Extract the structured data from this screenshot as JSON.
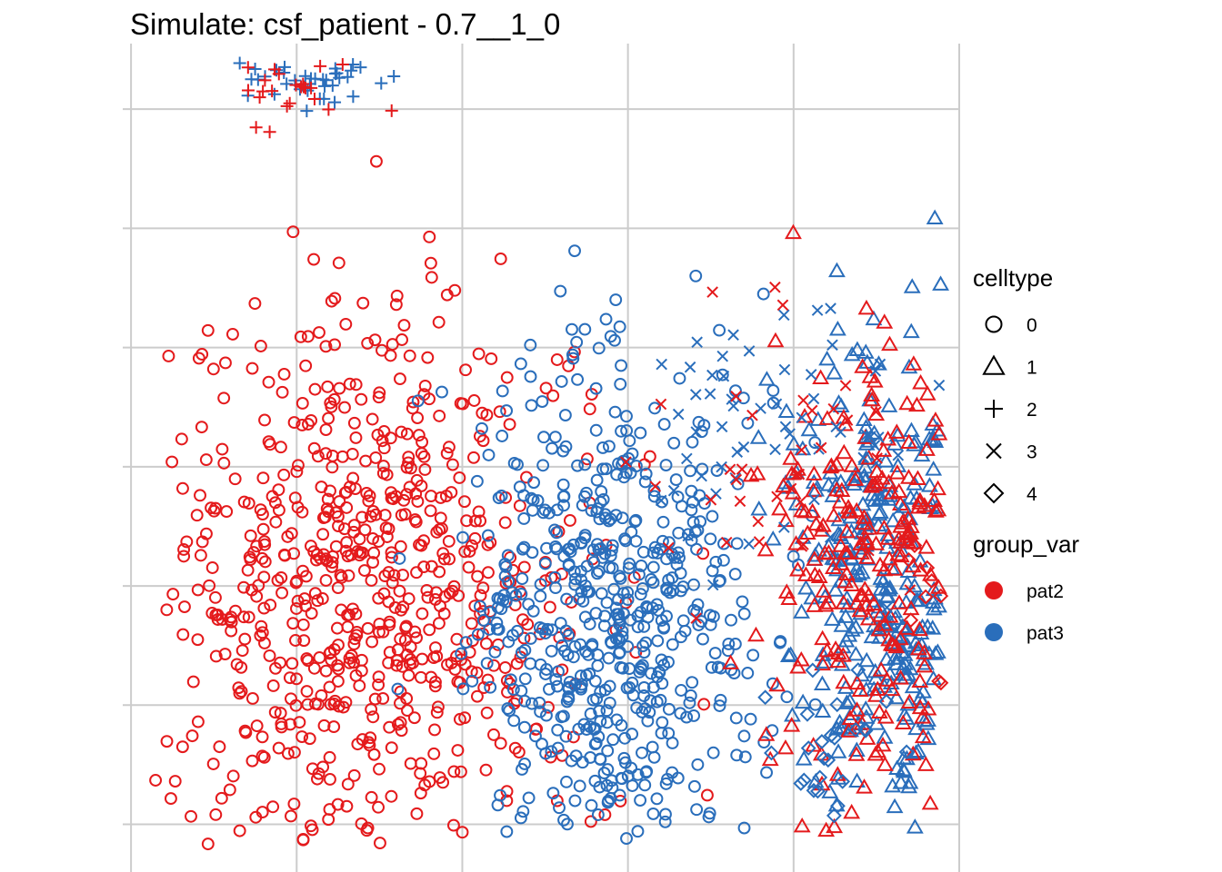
{
  "chart_data": {
    "type": "scatter",
    "title": "Simulate: csf_patient - 0.7__1_0",
    "xlabel": "",
    "ylabel": "",
    "grid": true,
    "axis_ticks_labeled": false,
    "legend_position": "right",
    "colors": {
      "pat2": "#E41A1C",
      "pat3": "#2A6EBB",
      "grid": "#cccccc"
    },
    "legends": [
      {
        "title": "celltype",
        "entries": [
          {
            "label": "0",
            "shape": "circle"
          },
          {
            "label": "1",
            "shape": "triangle"
          },
          {
            "label": "2",
            "shape": "plus"
          },
          {
            "label": "3",
            "shape": "cross"
          },
          {
            "label": "4",
            "shape": "diamond"
          }
        ]
      },
      {
        "title": "group_var",
        "entries": [
          {
            "label": "pat2",
            "color": "#E41A1C"
          },
          {
            "label": "pat3",
            "color": "#2A6EBB"
          }
        ]
      }
    ],
    "clusters": [
      {
        "celltype": "2",
        "group_var": "pat3",
        "center": [
          -1.95,
          4.25
        ],
        "spread": [
          0.2,
          0.14
        ],
        "n": 42
      },
      {
        "celltype": "2",
        "group_var": "pat2",
        "center": [
          -2.05,
          4.2
        ],
        "spread": [
          0.2,
          0.14
        ],
        "n": 26
      },
      {
        "celltype": "0",
        "group_var": "pat2",
        "center": [
          -1.55,
          -0.1
        ],
        "spread": [
          0.65,
          1.2
        ],
        "n": 720
      },
      {
        "celltype": "0",
        "group_var": "pat3",
        "center": [
          -0.1,
          -0.35
        ],
        "spread": [
          0.45,
          1.15
        ],
        "n": 620
      },
      {
        "celltype": "1",
        "group_var": "pat3",
        "center": [
          1.55,
          0.05
        ],
        "spread": [
          0.32,
          1.0
        ],
        "n": 330
      },
      {
        "celltype": "1",
        "group_var": "pat2",
        "center": [
          1.5,
          0.2
        ],
        "spread": [
          0.32,
          1.0
        ],
        "n": 260
      },
      {
        "celltype": "3",
        "group_var": "pat3",
        "center": [
          0.95,
          1.35
        ],
        "spread": [
          0.45,
          0.6
        ],
        "n": 60
      },
      {
        "celltype": "3",
        "group_var": "pat2",
        "center": [
          0.95,
          0.95
        ],
        "spread": [
          0.45,
          0.7
        ],
        "n": 38
      },
      {
        "celltype": "4",
        "group_var": "pat3",
        "center": [
          1.25,
          -1.4
        ],
        "spread": [
          0.25,
          0.35
        ],
        "n": 26
      },
      {
        "celltype": "4",
        "group_var": "pat2",
        "center": [
          1.8,
          -0.5
        ],
        "spread": [
          0.2,
          0.7
        ],
        "n": 14
      }
    ],
    "xlim": [
      -3.05,
      2.0
    ],
    "ylim": [
      -2.4,
      4.55
    ],
    "x_gridlines": [
      -3,
      -2,
      -1,
      0,
      1,
      2
    ],
    "y_gridlines": [
      -2,
      -1,
      0,
      1,
      2,
      3,
      4
    ],
    "seed": 7
  }
}
